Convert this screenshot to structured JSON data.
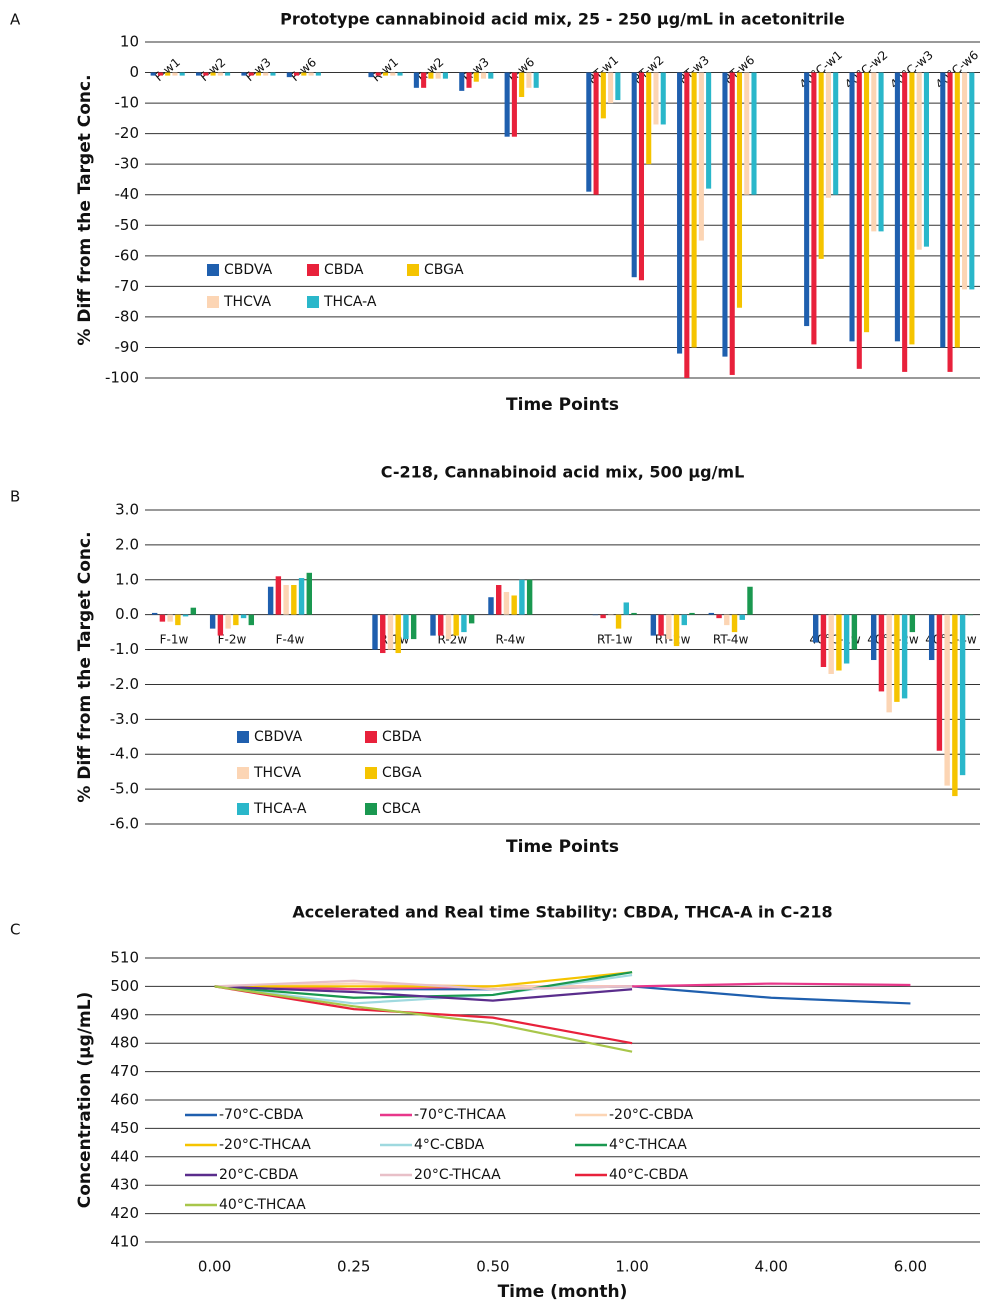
{
  "chart_data": [
    {
      "type": "bar",
      "panel_label": "A",
      "title": "Prototype cannabinoid acid mix, 25 - 250 µg/mL in acetonitrile",
      "y_label": "% Diff from the Target Conc.",
      "x_label": "Time Points",
      "categories": [
        "F-w1",
        "F-w2",
        "F-w3",
        "F-w6",
        "R-w1",
        "R-w2",
        "R-w3",
        "R-w6",
        "RT-w1",
        "RT-w2",
        "RT-w3",
        "RT-w6",
        "40°C-w1",
        "40°C-w2",
        "40°C-w3",
        "40°C-w6"
      ],
      "series": [
        {
          "name": "CBDVA",
          "color": "#1f5fae",
          "values": [
            -1,
            -1,
            -1,
            -1.5,
            -1.5,
            -5,
            -6,
            -21,
            -39,
            -67,
            -92,
            -93,
            -83,
            -88,
            -88,
            -90
          ]
        },
        {
          "name": "CBDA",
          "color": "#e8213b",
          "values": [
            -1,
            -1,
            -1,
            -1,
            -1,
            -5,
            -5,
            -21,
            -40,
            -68,
            -100,
            -99,
            -89,
            -97,
            -98,
            -98
          ]
        },
        {
          "name": "CBGA",
          "color": "#f5c400",
          "values": [
            -1,
            -1,
            -1,
            -1,
            -1,
            -2,
            -3,
            -8,
            -15,
            -30,
            -90,
            -77,
            -61,
            -85,
            -89,
            -90
          ]
        },
        {
          "name": "THCVA",
          "color": "#fcd5b4",
          "values": [
            -1,
            -1,
            -1,
            -1,
            -1,
            -2,
            -2,
            -5,
            -10,
            -17,
            -55,
            -40,
            -41,
            -52,
            -58,
            -71
          ]
        },
        {
          "name": "THCA-A",
          "color": "#2ab7ca",
          "values": [
            -1,
            -1,
            -1,
            -1,
            -1,
            -2,
            -2,
            -5,
            -9,
            -17,
            -38,
            -40,
            -40,
            -52,
            -57,
            -71
          ]
        }
      ],
      "ylim": [
        -100,
        10
      ],
      "yticks": [
        -100,
        -90,
        -80,
        -70,
        -60,
        -50,
        -40,
        -30,
        -20,
        -10,
        0,
        10
      ],
      "grid": true
    },
    {
      "type": "bar",
      "panel_label": "B",
      "title": "C-218, Cannabinoid acid mix, 500 µg/mL",
      "y_label": "% Diff from the Target Conc.",
      "x_label": "Time Points",
      "categories": [
        "F-1w",
        "F-2w",
        "F-4w",
        "R-1w",
        "R-2w",
        "R-4w",
        "RT-1w",
        "RT-2w",
        "RT-4w",
        "40°C-1w",
        "40°C-2w",
        "40°C-4w"
      ],
      "series": [
        {
          "name": "CBDVA",
          "color": "#1f5fae",
          "values": [
            0.05,
            -0.4,
            0.8,
            -1.0,
            -0.6,
            0.5,
            0,
            -0.6,
            0.05,
            -0.8,
            -1.3,
            -1.3
          ]
        },
        {
          "name": "CBDA",
          "color": "#e8213b",
          "values": [
            -0.2,
            -0.6,
            1.1,
            -1.1,
            -0.6,
            0.85,
            -0.1,
            -0.6,
            -0.1,
            -1.5,
            -2.2,
            -3.9
          ]
        },
        {
          "name": "THCVA",
          "color": "#fcd5b4",
          "values": [
            -0.2,
            -0.4,
            0.85,
            -1.0,
            -0.7,
            0.65,
            0,
            -0.7,
            -0.3,
            -1.7,
            -2.8,
            -4.9
          ]
        },
        {
          "name": "CBGA",
          "color": "#f5c400",
          "values": [
            -0.3,
            -0.3,
            0.85,
            -1.1,
            -0.6,
            0.55,
            -0.4,
            -0.9,
            -0.5,
            -1.6,
            -2.5,
            -5.2
          ]
        },
        {
          "name": "THCA-A",
          "color": "#2ab7ca",
          "values": [
            -0.05,
            -0.1,
            1.05,
            -0.7,
            -0.5,
            1.0,
            0.35,
            -0.3,
            -0.15,
            -1.4,
            -2.4,
            -4.6
          ]
        },
        {
          "name": "CBCA",
          "color": "#1a9850",
          "values": [
            0.2,
            -0.3,
            1.2,
            -0.7,
            -0.25,
            1.0,
            0.05,
            0.05,
            0.8,
            -1.0,
            -0.5,
            0
          ]
        }
      ],
      "ylim": [
        -6,
        3
      ],
      "yticks": [
        {
          "value": -6,
          "label": "-6.0"
        },
        {
          "value": -5,
          "label": "-5.0"
        },
        {
          "value": -4,
          "label": "-4.0"
        },
        {
          "value": -3,
          "label": "-3.0"
        },
        {
          "value": -2,
          "label": "-2.0"
        },
        {
          "value": -1,
          "label": "-1.0"
        },
        {
          "value": 0,
          "label": "0.0"
        },
        {
          "value": 1,
          "label": "1.0"
        },
        {
          "value": 2,
          "label": "2.0"
        },
        {
          "value": 3,
          "label": "3.0"
        }
      ],
      "grid": true
    },
    {
      "type": "line",
      "panel_label": "C",
      "title": "Accelerated and Real time Stability: CBDA, THCA-A in C-218",
      "y_label": "Concentration (µg/mL)",
      "x_label": "Time (month)",
      "categories": [
        "0.00",
        "0.25",
        "0.50",
        "1.00",
        "4.00",
        "6.00"
      ],
      "series": [
        {
          "name": "-70°C-CBDA",
          "color": "#1f5fae",
          "values": [
            500,
            499,
            499,
            500,
            496,
            494
          ]
        },
        {
          "name": "-70°C-THCAA",
          "color": "#e8378a",
          "values": [
            500,
            499,
            500,
            500,
            501,
            500.5
          ]
        },
        {
          "name": "-20°C-CBDA",
          "color": "#fcd5b4",
          "values": [
            500,
            501,
            500,
            500,
            null,
            null
          ]
        },
        {
          "name": "-20°C-THCAA",
          "color": "#f5c400",
          "values": [
            500,
            500,
            500,
            505,
            null,
            null
          ]
        },
        {
          "name": "4°C-CBDA",
          "color": "#9fd9df",
          "values": [
            500,
            494,
            497,
            504,
            null,
            null
          ]
        },
        {
          "name": "4°C-THCAA",
          "color": "#1a9850",
          "values": [
            500,
            496,
            497,
            505,
            null,
            null
          ]
        },
        {
          "name": "20°C-CBDA",
          "color": "#5a2d8c",
          "values": [
            500,
            498,
            495,
            499,
            null,
            null
          ]
        },
        {
          "name": "20°C-THCAA",
          "color": "#e8c0c8",
          "values": [
            500,
            502,
            499,
            500,
            null,
            null
          ]
        },
        {
          "name": "40°C-CBDA",
          "color": "#e8213b",
          "values": [
            500,
            492,
            489,
            480,
            null,
            null
          ]
        },
        {
          "name": "40°C-THCAA",
          "color": "#a8c64a",
          "values": [
            500,
            493,
            487,
            477,
            null,
            null
          ]
        }
      ],
      "ylim": [
        410,
        510
      ],
      "yticks": [
        410,
        420,
        430,
        440,
        450,
        460,
        470,
        480,
        490,
        500,
        510
      ],
      "grid": true
    }
  ]
}
